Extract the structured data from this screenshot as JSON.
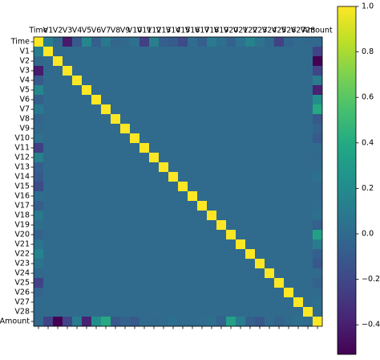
{
  "chart_data": {
    "type": "heatmap",
    "categories": [
      "Time",
      "V1",
      "V2",
      "V3",
      "V4",
      "V5",
      "V6",
      "V7",
      "V8",
      "V9",
      "V10",
      "V11",
      "V12",
      "V13",
      "V14",
      "V15",
      "V16",
      "V17",
      "V18",
      "V19",
      "V20",
      "V21",
      "V22",
      "V23",
      "V24",
      "V25",
      "V26",
      "V27",
      "V28",
      "Amount"
    ],
    "colormap": "viridis",
    "clim": [
      -0.53,
      1.0
    ],
    "cticks": [
      {
        "value": -0.4,
        "label": "−0.4"
      },
      {
        "value": -0.2,
        "label": "−0.2"
      },
      {
        "value": 0,
        "label": "0.0"
      },
      {
        "value": 0.2,
        "label": "0.2"
      },
      {
        "value": 0.4,
        "label": "0.4"
      },
      {
        "value": 0.6,
        "label": "0.6"
      },
      {
        "value": 0.8,
        "label": "0.8"
      },
      {
        "value": 1,
        "label": "1.0"
      }
    ],
    "values": [
      [
        1,
        0.117,
        -0.011,
        -0.42,
        -0.105,
        0.173,
        -0.063,
        0.085,
        -0.037,
        -0.009,
        0.031,
        -0.248,
        0.124,
        -0.066,
        -0.099,
        -0.183,
        0.012,
        -0.073,
        0.09,
        0.029,
        -0.051,
        0.045,
        0.144,
        0.051,
        -0.016,
        -0.233,
        -0.041,
        -0.005,
        -0.009,
        -0.011
      ],
      [
        0.117,
        1,
        0,
        0,
        0,
        0,
        0,
        0,
        0,
        0,
        0,
        0,
        0,
        0,
        0,
        0,
        0,
        0,
        0,
        0,
        0,
        0,
        0,
        0,
        0,
        0,
        0,
        0,
        0,
        -0.228
      ],
      [
        -0.011,
        0,
        1,
        0,
        0,
        0,
        0,
        0,
        0,
        0,
        0,
        0,
        0,
        0,
        0,
        0,
        0,
        0,
        0,
        0,
        0,
        0,
        0,
        0,
        0,
        0,
        0,
        0,
        0,
        -0.531
      ],
      [
        -0.42,
        0,
        0,
        1,
        0,
        0,
        0,
        0,
        0,
        0,
        0,
        0,
        0,
        0,
        0,
        0,
        0,
        0,
        0,
        0,
        0,
        0,
        0,
        0,
        0,
        0,
        0,
        0,
        0,
        -0.211
      ],
      [
        -0.105,
        0,
        0,
        0,
        1,
        0,
        0,
        0,
        0,
        0,
        0,
        0,
        0,
        0,
        0,
        0,
        0,
        0,
        0,
        0,
        0,
        0,
        0,
        0,
        0,
        0,
        0,
        0,
        0,
        0.099
      ],
      [
        0.173,
        0,
        0,
        0,
        0,
        1,
        0,
        0,
        0,
        0,
        0,
        0,
        0,
        0,
        0,
        0,
        0,
        0,
        0,
        0,
        0,
        0,
        0,
        0,
        0,
        0,
        0,
        0,
        0,
        -0.386
      ],
      [
        -0.063,
        0,
        0,
        0,
        0,
        0,
        1,
        0,
        0,
        0,
        0,
        0,
        0,
        0,
        0,
        0,
        0,
        0,
        0,
        0,
        0,
        0,
        0,
        0,
        0,
        0,
        0,
        0,
        0,
        0.216
      ],
      [
        0.085,
        0,
        0,
        0,
        0,
        0,
        0,
        1,
        0,
        0,
        0,
        0,
        0,
        0,
        0,
        0,
        0,
        0,
        0,
        0,
        0,
        0,
        0,
        0,
        0,
        0,
        0,
        0,
        0,
        0.397
      ],
      [
        -0.037,
        0,
        0,
        0,
        0,
        0,
        0,
        0,
        1,
        0,
        0,
        0,
        0,
        0,
        0,
        0,
        0,
        0,
        0,
        0,
        0,
        0,
        0,
        0,
        0,
        0,
        0,
        0,
        0,
        -0.103
      ],
      [
        -0.009,
        0,
        0,
        0,
        0,
        0,
        0,
        0,
        0,
        1,
        0,
        0,
        0,
        0,
        0,
        0,
        0,
        0,
        0,
        0,
        0,
        0,
        0,
        0,
        0,
        0,
        0,
        0,
        0,
        -0.044
      ],
      [
        0.031,
        0,
        0,
        0,
        0,
        0,
        0,
        0,
        0,
        0,
        1,
        0,
        0,
        0,
        0,
        0,
        0,
        0,
        0,
        0,
        0,
        0,
        0,
        0,
        0,
        0,
        0,
        0,
        0,
        -0.102
      ],
      [
        -0.248,
        0,
        0,
        0,
        0,
        0,
        0,
        0,
        0,
        0,
        0,
        1,
        0,
        0,
        0,
        0,
        0,
        0,
        0,
        0,
        0,
        0,
        0,
        0,
        0,
        0,
        0,
        0,
        0,
        0
      ],
      [
        0.124,
        0,
        0,
        0,
        0,
        0,
        0,
        0,
        0,
        0,
        0,
        0,
        1,
        0,
        0,
        0,
        0,
        0,
        0,
        0,
        0,
        0,
        0,
        0,
        0,
        0,
        0,
        0,
        0,
        -0.01
      ],
      [
        -0.066,
        0,
        0,
        0,
        0,
        0,
        0,
        0,
        0,
        0,
        0,
        0,
        0,
        1,
        0,
        0,
        0,
        0,
        0,
        0,
        0,
        0,
        0,
        0,
        0,
        0,
        0,
        0,
        0,
        0.005
      ],
      [
        -0.099,
        0,
        0,
        0,
        0,
        0,
        0,
        0,
        0,
        0,
        0,
        0,
        0,
        0,
        1,
        0,
        0,
        0,
        0,
        0,
        0,
        0,
        0,
        0,
        0,
        0,
        0,
        0,
        0,
        0.034
      ],
      [
        -0.183,
        0,
        0,
        0,
        0,
        0,
        0,
        0,
        0,
        0,
        0,
        0,
        0,
        0,
        0,
        1,
        0,
        0,
        0,
        0,
        0,
        0,
        0,
        0,
        0,
        0,
        0,
        0,
        0,
        -0.003
      ],
      [
        0.012,
        0,
        0,
        0,
        0,
        0,
        0,
        0,
        0,
        0,
        0,
        0,
        0,
        0,
        0,
        0,
        1,
        0,
        0,
        0,
        0,
        0,
        0,
        0,
        0,
        0,
        0,
        0,
        0,
        -0.004
      ],
      [
        -0.073,
        0,
        0,
        0,
        0,
        0,
        0,
        0,
        0,
        0,
        0,
        0,
        0,
        0,
        0,
        0,
        0,
        1,
        0,
        0,
        0,
        0,
        0,
        0,
        0,
        0,
        0,
        0,
        0,
        0.007
      ],
      [
        0.09,
        0,
        0,
        0,
        0,
        0,
        0,
        0,
        0,
        0,
        0,
        0,
        0,
        0,
        0,
        0,
        0,
        0,
        1,
        0,
        0,
        0,
        0,
        0,
        0,
        0,
        0,
        0,
        0,
        0.036
      ],
      [
        0.029,
        0,
        0,
        0,
        0,
        0,
        0,
        0,
        0,
        0,
        0,
        0,
        0,
        0,
        0,
        0,
        0,
        0,
        0,
        1,
        0,
        0,
        0,
        0,
        0,
        0,
        0,
        0,
        0,
        -0.056
      ],
      [
        -0.051,
        0,
        0,
        0,
        0,
        0,
        0,
        0,
        0,
        0,
        0,
        0,
        0,
        0,
        0,
        0,
        0,
        0,
        0,
        0,
        1,
        0,
        0,
        0,
        0,
        0,
        0,
        0,
        0,
        0.339
      ],
      [
        0.045,
        0,
        0,
        0,
        0,
        0,
        0,
        0,
        0,
        0,
        0,
        0,
        0,
        0,
        0,
        0,
        0,
        0,
        0,
        0,
        0,
        1,
        0,
        0,
        0,
        0,
        0,
        0,
        0,
        0.106
      ],
      [
        0.144,
        0,
        0,
        0,
        0,
        0,
        0,
        0,
        0,
        0,
        0,
        0,
        0,
        0,
        0,
        0,
        0,
        0,
        0,
        0,
        0,
        0,
        1,
        0,
        0,
        0,
        0,
        0,
        0,
        -0.065
      ],
      [
        0.051,
        0,
        0,
        0,
        0,
        0,
        0,
        0,
        0,
        0,
        0,
        0,
        0,
        0,
        0,
        0,
        0,
        0,
        0,
        0,
        0,
        0,
        0,
        1,
        0,
        0,
        0,
        0,
        0,
        -0.113
      ],
      [
        -0.016,
        0,
        0,
        0,
        0,
        0,
        0,
        0,
        0,
        0,
        0,
        0,
        0,
        0,
        0,
        0,
        0,
        0,
        0,
        0,
        0,
        0,
        0,
        0,
        1,
        0,
        0,
        0,
        0,
        0.005
      ],
      [
        -0.233,
        0,
        0,
        0,
        0,
        0,
        0,
        0,
        0,
        0,
        0,
        0,
        0,
        0,
        0,
        0,
        0,
        0,
        0,
        0,
        0,
        0,
        0,
        0,
        0,
        1,
        0,
        0,
        0,
        -0.048
      ],
      [
        -0.041,
        0,
        0,
        0,
        0,
        0,
        0,
        0,
        0,
        0,
        0,
        0,
        0,
        0,
        0,
        0,
        0,
        0,
        0,
        0,
        0,
        0,
        0,
        0,
        0,
        0,
        1,
        0,
        0,
        -0.003
      ],
      [
        -0.005,
        0,
        0,
        0,
        0,
        0,
        0,
        0,
        0,
        0,
        0,
        0,
        0,
        0,
        0,
        0,
        0,
        0,
        0,
        0,
        0,
        0,
        0,
        0,
        0,
        0,
        0,
        1,
        0,
        0.029
      ],
      [
        -0.009,
        0,
        0,
        0,
        0,
        0,
        0,
        0,
        0,
        0,
        0,
        0,
        0,
        0,
        0,
        0,
        0,
        0,
        0,
        0,
        0,
        0,
        0,
        0,
        0,
        0,
        0,
        0,
        1,
        0.01
      ],
      [
        -0.011,
        -0.228,
        -0.531,
        -0.211,
        0.099,
        -0.386,
        0.216,
        0.397,
        -0.103,
        -0.044,
        -0.102,
        0,
        -0.01,
        0.005,
        0.034,
        -0.003,
        -0.004,
        0.007,
        0.036,
        -0.056,
        0.339,
        0.106,
        -0.065,
        -0.113,
        0.005,
        -0.048,
        -0.003,
        0.029,
        0.01,
        1
      ]
    ]
  }
}
